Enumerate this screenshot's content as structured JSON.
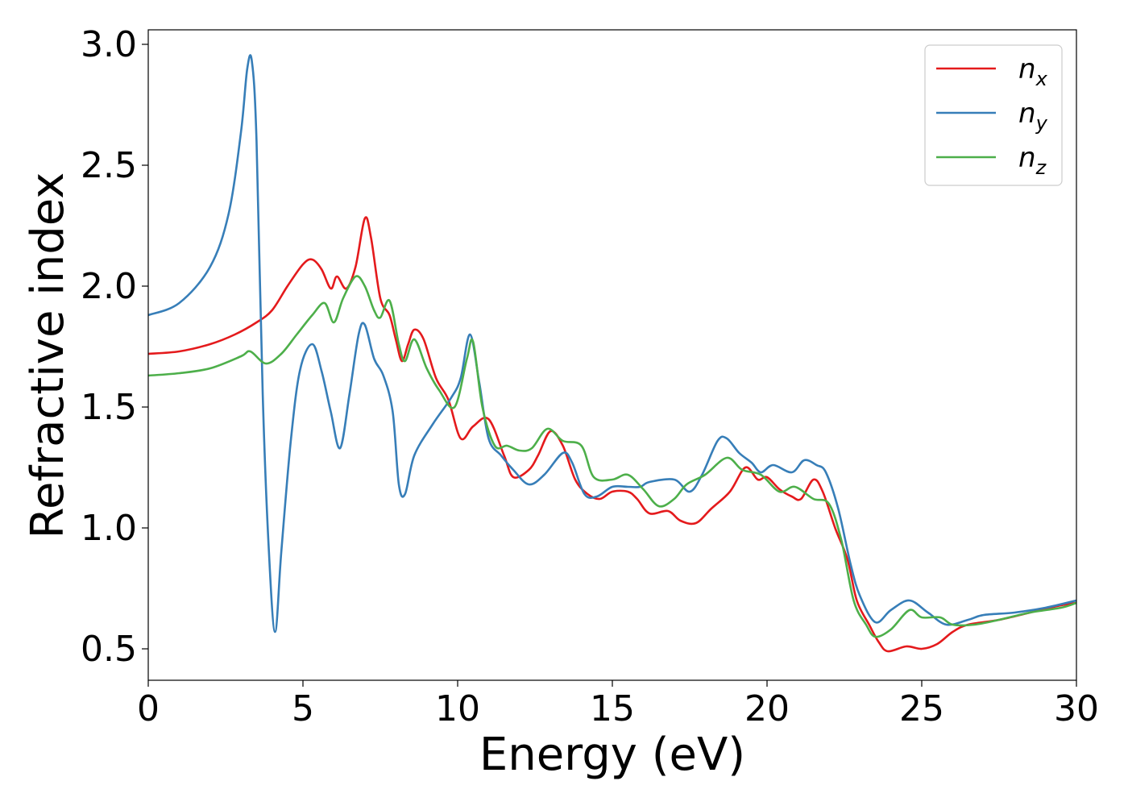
{
  "chart_data": {
    "type": "line",
    "xlabel": "Energy (eV)",
    "ylabel": "Refractive index",
    "xlim": [
      0,
      30
    ],
    "ylim": [
      0.37,
      3.06
    ],
    "xticks": [
      "0",
      "5",
      "10",
      "15",
      "20",
      "25",
      "30"
    ],
    "yticks": [
      "0.5",
      "1.0",
      "1.5",
      "2.0",
      "2.5",
      "3.0"
    ],
    "grid": false,
    "legend_position": "top-right",
    "series": [
      {
        "name": "n",
        "subscript": "x",
        "color": "#e41a1c",
        "points": [
          [
            0,
            1.72
          ],
          [
            1,
            1.73
          ],
          [
            2,
            1.76
          ],
          [
            2.8,
            1.8
          ],
          [
            3.5,
            1.85
          ],
          [
            4,
            1.9
          ],
          [
            4.5,
            2.0
          ],
          [
            5,
            2.09
          ],
          [
            5.3,
            2.11
          ],
          [
            5.6,
            2.07
          ],
          [
            5.9,
            1.99
          ],
          [
            6.1,
            2.04
          ],
          [
            6.4,
            1.99
          ],
          [
            6.7,
            2.08
          ],
          [
            7,
            2.28
          ],
          [
            7.2,
            2.2
          ],
          [
            7.5,
            1.95
          ],
          [
            7.8,
            1.88
          ],
          [
            8,
            1.78
          ],
          [
            8.2,
            1.69
          ],
          [
            8.4,
            1.76
          ],
          [
            8.6,
            1.82
          ],
          [
            8.9,
            1.78
          ],
          [
            9.3,
            1.62
          ],
          [
            9.7,
            1.53
          ],
          [
            10.1,
            1.37
          ],
          [
            10.5,
            1.42
          ],
          [
            11,
            1.45
          ],
          [
            11.5,
            1.3
          ],
          [
            11.8,
            1.21
          ],
          [
            12.3,
            1.24
          ],
          [
            12.6,
            1.3
          ],
          [
            13,
            1.4
          ],
          [
            13.4,
            1.34
          ],
          [
            13.8,
            1.2
          ],
          [
            14.2,
            1.14
          ],
          [
            14.6,
            1.12
          ],
          [
            15,
            1.15
          ],
          [
            15.5,
            1.15
          ],
          [
            15.8,
            1.12
          ],
          [
            16.2,
            1.06
          ],
          [
            16.8,
            1.07
          ],
          [
            17.2,
            1.03
          ],
          [
            17.7,
            1.02
          ],
          [
            18.2,
            1.08
          ],
          [
            18.8,
            1.15
          ],
          [
            19.3,
            1.25
          ],
          [
            19.7,
            1.2
          ],
          [
            20,
            1.21
          ],
          [
            20.4,
            1.16
          ],
          [
            20.8,
            1.13
          ],
          [
            21.1,
            1.12
          ],
          [
            21.5,
            1.2
          ],
          [
            21.8,
            1.15
          ],
          [
            22.2,
            1.0
          ],
          [
            22.6,
            0.87
          ],
          [
            22.9,
            0.7
          ],
          [
            23.3,
            0.6
          ],
          [
            23.6,
            0.53
          ],
          [
            23.9,
            0.49
          ],
          [
            24.5,
            0.51
          ],
          [
            25,
            0.5
          ],
          [
            25.5,
            0.52
          ],
          [
            26,
            0.57
          ],
          [
            26.5,
            0.6
          ],
          [
            27.5,
            0.62
          ],
          [
            28.5,
            0.65
          ],
          [
            29.5,
            0.68
          ],
          [
            30,
            0.69
          ]
        ]
      },
      {
        "name": "n",
        "subscript": "y",
        "color": "#377eb8",
        "points": [
          [
            0,
            1.88
          ],
          [
            1,
            1.93
          ],
          [
            2,
            2.08
          ],
          [
            2.6,
            2.3
          ],
          [
            3,
            2.64
          ],
          [
            3.2,
            2.9
          ],
          [
            3.35,
            2.93
          ],
          [
            3.5,
            2.6
          ],
          [
            3.7,
            1.55
          ],
          [
            3.9,
            0.9
          ],
          [
            4.1,
            0.57
          ],
          [
            4.3,
            0.9
          ],
          [
            4.6,
            1.35
          ],
          [
            4.9,
            1.65
          ],
          [
            5.3,
            1.76
          ],
          [
            5.6,
            1.65
          ],
          [
            5.9,
            1.48
          ],
          [
            6.2,
            1.33
          ],
          [
            6.5,
            1.55
          ],
          [
            6.8,
            1.8
          ],
          [
            7,
            1.84
          ],
          [
            7.3,
            1.7
          ],
          [
            7.6,
            1.63
          ],
          [
            7.9,
            1.48
          ],
          [
            8.1,
            1.18
          ],
          [
            8.3,
            1.14
          ],
          [
            8.6,
            1.3
          ],
          [
            9.2,
            1.43
          ],
          [
            9.8,
            1.54
          ],
          [
            10.1,
            1.62
          ],
          [
            10.4,
            1.8
          ],
          [
            10.7,
            1.6
          ],
          [
            11,
            1.37
          ],
          [
            11.4,
            1.3
          ],
          [
            11.8,
            1.24
          ],
          [
            12.3,
            1.18
          ],
          [
            12.8,
            1.22
          ],
          [
            13.4,
            1.31
          ],
          [
            13.7,
            1.27
          ],
          [
            14.1,
            1.14
          ],
          [
            14.5,
            1.13
          ],
          [
            15,
            1.17
          ],
          [
            15.5,
            1.17
          ],
          [
            15.9,
            1.17
          ],
          [
            16.2,
            1.19
          ],
          [
            17,
            1.2
          ],
          [
            17.5,
            1.15
          ],
          [
            17.9,
            1.22
          ],
          [
            18.4,
            1.36
          ],
          [
            18.7,
            1.37
          ],
          [
            19.1,
            1.31
          ],
          [
            19.5,
            1.27
          ],
          [
            19.8,
            1.23
          ],
          [
            20.2,
            1.26
          ],
          [
            20.8,
            1.23
          ],
          [
            21.2,
            1.28
          ],
          [
            21.6,
            1.26
          ],
          [
            21.9,
            1.23
          ],
          [
            22.3,
            1.08
          ],
          [
            22.7,
            0.85
          ],
          [
            23,
            0.72
          ],
          [
            23.5,
            0.61
          ],
          [
            24,
            0.66
          ],
          [
            24.6,
            0.7
          ],
          [
            25.2,
            0.65
          ],
          [
            25.8,
            0.6
          ],
          [
            26.5,
            0.62
          ],
          [
            27,
            0.64
          ],
          [
            28,
            0.65
          ],
          [
            29,
            0.67
          ],
          [
            30,
            0.7
          ]
        ]
      },
      {
        "name": "n",
        "subscript": "z",
        "color": "#4daf4a",
        "points": [
          [
            0,
            1.63
          ],
          [
            1,
            1.64
          ],
          [
            2,
            1.66
          ],
          [
            3,
            1.71
          ],
          [
            3.3,
            1.73
          ],
          [
            3.8,
            1.68
          ],
          [
            4.3,
            1.72
          ],
          [
            4.8,
            1.8
          ],
          [
            5.3,
            1.88
          ],
          [
            5.7,
            1.93
          ],
          [
            6,
            1.85
          ],
          [
            6.3,
            1.95
          ],
          [
            6.7,
            2.04
          ],
          [
            7,
            2.0
          ],
          [
            7.3,
            1.9
          ],
          [
            7.5,
            1.87
          ],
          [
            7.8,
            1.94
          ],
          [
            8.1,
            1.76
          ],
          [
            8.3,
            1.69
          ],
          [
            8.6,
            1.78
          ],
          [
            9,
            1.66
          ],
          [
            9.4,
            1.57
          ],
          [
            9.9,
            1.5
          ],
          [
            10.3,
            1.7
          ],
          [
            10.5,
            1.77
          ],
          [
            10.8,
            1.5
          ],
          [
            11.2,
            1.34
          ],
          [
            11.6,
            1.34
          ],
          [
            12,
            1.32
          ],
          [
            12.4,
            1.33
          ],
          [
            12.9,
            1.41
          ],
          [
            13.4,
            1.36
          ],
          [
            14,
            1.34
          ],
          [
            14.4,
            1.21
          ],
          [
            15,
            1.2
          ],
          [
            15.5,
            1.22
          ],
          [
            16,
            1.16
          ],
          [
            16.5,
            1.09
          ],
          [
            17,
            1.12
          ],
          [
            17.4,
            1.18
          ],
          [
            18,
            1.22
          ],
          [
            18.7,
            1.29
          ],
          [
            19.2,
            1.24
          ],
          [
            19.8,
            1.22
          ],
          [
            20.4,
            1.15
          ],
          [
            20.9,
            1.17
          ],
          [
            21.5,
            1.12
          ],
          [
            22,
            1.1
          ],
          [
            22.4,
            0.95
          ],
          [
            22.8,
            0.7
          ],
          [
            23.2,
            0.6
          ],
          [
            23.5,
            0.55
          ],
          [
            24,
            0.58
          ],
          [
            24.6,
            0.66
          ],
          [
            25,
            0.63
          ],
          [
            25.6,
            0.63
          ],
          [
            26,
            0.6
          ],
          [
            26.7,
            0.6
          ],
          [
            27.5,
            0.62
          ],
          [
            28.5,
            0.65
          ],
          [
            29.5,
            0.67
          ],
          [
            30,
            0.69
          ]
        ]
      }
    ]
  }
}
